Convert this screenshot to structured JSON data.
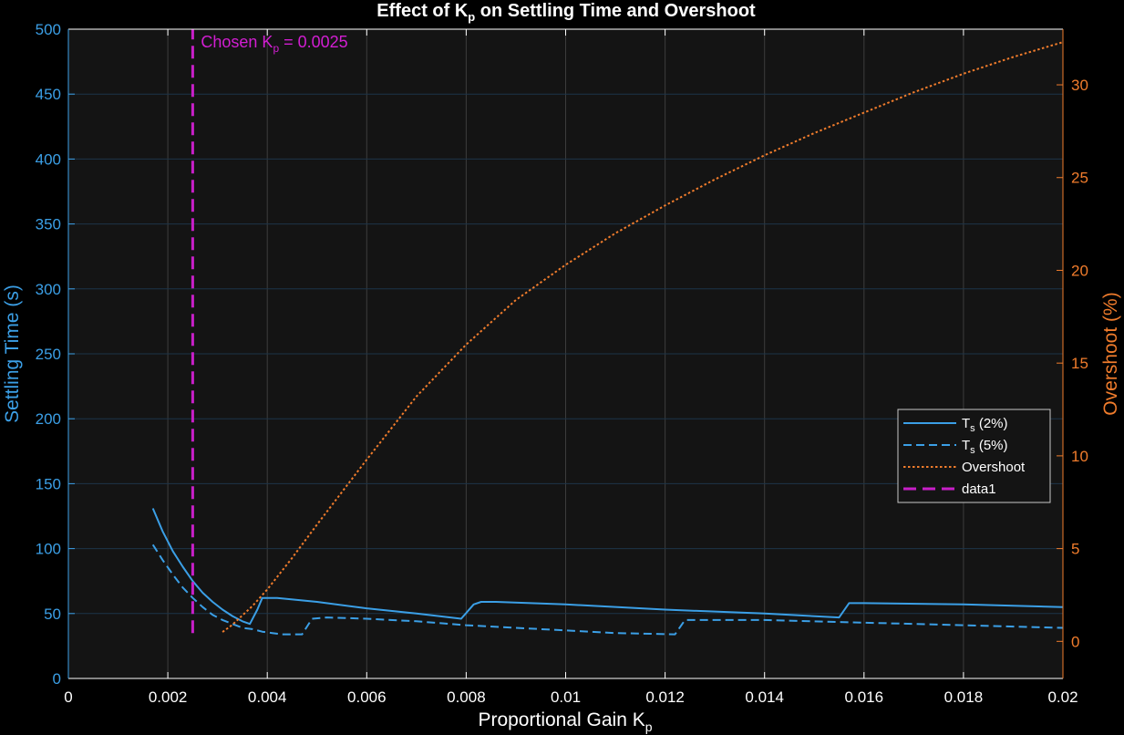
{
  "chart_data": {
    "type": "line",
    "title": {
      "pre": "Effect of K",
      "sub": "p",
      "post": " on Settling Time and Overshoot"
    },
    "xlabel": {
      "pre": "Proportional Gain K",
      "sub": "p"
    },
    "ylabel_left": "Settling Time (s)",
    "ylabel_right": "Overshoot (%)",
    "xlim": [
      0,
      0.02
    ],
    "ylim_left": [
      0,
      500
    ],
    "ylim_right": [
      -2,
      33
    ],
    "x_ticks": [
      "0",
      "0.002",
      "0.004",
      "0.006",
      "0.008",
      "0.01",
      "0.012",
      "0.014",
      "0.016",
      "0.018",
      "0.02"
    ],
    "y_ticks_left": [
      "0",
      "50",
      "100",
      "150",
      "200",
      "250",
      "300",
      "350",
      "400",
      "450",
      "500"
    ],
    "y_ticks_right": [
      "0",
      "5",
      "10",
      "15",
      "20",
      "25",
      "30"
    ],
    "grid": true,
    "background": "#141414",
    "legend_position": "right",
    "annotation": {
      "pre": "Chosen  K",
      "sub": "p",
      "post": "  =  0.0025",
      "x": 0.0025,
      "y": 490
    },
    "series": [
      {
        "name": {
          "pre": "T",
          "sub": "s",
          "post": "  (2%)"
        },
        "axis": "left",
        "color": "#3b9fe6",
        "style": "solid",
        "x": [
          0.0017,
          0.0019,
          0.0021,
          0.0023,
          0.0025,
          0.0027,
          0.0029,
          0.0031,
          0.0033,
          0.0035,
          0.00365,
          0.0038,
          0.0039,
          0.0042,
          0.005,
          0.006,
          0.007,
          0.0079,
          0.00815,
          0.0083,
          0.0086,
          0.01,
          0.012,
          0.014,
          0.0155,
          0.0157,
          0.016,
          0.018,
          0.02
        ],
        "y": [
          131,
          113,
          98,
          86,
          75,
          66,
          59,
          53,
          48,
          44,
          42,
          53,
          62,
          62,
          59,
          54,
          50,
          46,
          57,
          59,
          59,
          57,
          53,
          50,
          47,
          58,
          58,
          57,
          55
        ]
      },
      {
        "name": {
          "pre": "T",
          "sub": "s",
          "post": "  (5%)"
        },
        "axis": "left",
        "color": "#3b9fe6",
        "style": "dashed",
        "x": [
          0.0017,
          0.0019,
          0.0021,
          0.0023,
          0.0025,
          0.0027,
          0.0029,
          0.0031,
          0.0033,
          0.0035,
          0.0037,
          0.0039,
          0.0041,
          0.0043,
          0.0045,
          0.0047,
          0.0049,
          0.0052,
          0.006,
          0.007,
          0.008,
          0.009,
          0.01,
          0.011,
          0.0122,
          0.0124,
          0.013,
          0.014,
          0.016,
          0.018,
          0.02
        ],
        "y": [
          103,
          91,
          80,
          70,
          62,
          55,
          49,
          45,
          42,
          39,
          38,
          36,
          35,
          34,
          34,
          34,
          46,
          47,
          46,
          44,
          41,
          39,
          37,
          35,
          34,
          45,
          45,
          45,
          43,
          41,
          39
        ]
      },
      {
        "name": {
          "pre": "Overshoot",
          "sub": "",
          "post": ""
        },
        "axis": "right",
        "color": "#f07c2c",
        "style": "dotted",
        "x": [
          0.0031,
          0.0033,
          0.0035,
          0.0037,
          0.004,
          0.0045,
          0.005,
          0.006,
          0.007,
          0.008,
          0.009,
          0.01,
          0.011,
          0.012,
          0.013,
          0.014,
          0.015,
          0.016,
          0.017,
          0.018,
          0.019,
          0.02
        ],
        "y": [
          0.5,
          0.9,
          1.4,
          1.9,
          2.8,
          4.5,
          6.3,
          9.8,
          13.2,
          16.0,
          18.4,
          20.3,
          22.0,
          23.5,
          24.9,
          26.2,
          27.4,
          28.5,
          29.6,
          30.6,
          31.5,
          32.3
        ]
      },
      {
        "name": {
          "pre": "data1",
          "sub": "",
          "post": ""
        },
        "axis": "left",
        "color": "#c81fc8",
        "style": "dashed-thick",
        "x": [
          0.0025,
          0.0025
        ],
        "y": [
          35,
          500
        ]
      }
    ]
  }
}
